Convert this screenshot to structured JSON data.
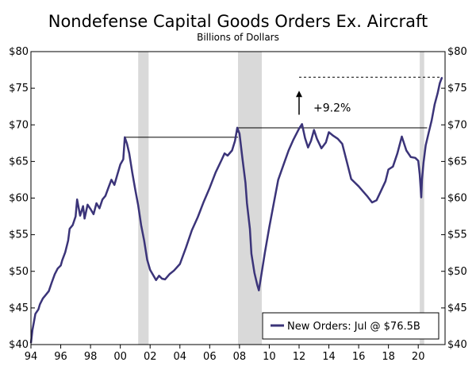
{
  "chart_data": {
    "type": "line",
    "title": "Nondefense Capital Goods Orders Ex. Aircraft",
    "subtitle": "Billions of Dollars",
    "xlabel": "",
    "ylabel": "",
    "xlim": [
      1994.0,
      2021.8
    ],
    "ylim": [
      40,
      80
    ],
    "y_ticks": [
      40,
      45,
      50,
      55,
      60,
      65,
      70,
      75,
      80
    ],
    "y_tick_labels_left": [
      "$40",
      "$45",
      "$50",
      "$55",
      "$60",
      "$65",
      "$70",
      "$75",
      "$80"
    ],
    "y_tick_labels_right": [
      "$40",
      "$45",
      "$50",
      "$55",
      "$60",
      "$65",
      "$70",
      "$75",
      "$80"
    ],
    "x_ticks": [
      1994,
      1996,
      1998,
      2000,
      2002,
      2004,
      2006,
      2008,
      2010,
      2012,
      2014,
      2016,
      2018,
      2020
    ],
    "x_tick_labels": [
      "94",
      "96",
      "98",
      "00",
      "02",
      "04",
      "06",
      "08",
      "10",
      "12",
      "14",
      "16",
      "18",
      "20"
    ],
    "grid": false,
    "legend_position": "bottom-right",
    "recessions": [
      [
        2001.2,
        2001.9
      ],
      [
        2007.9,
        2009.5
      ],
      [
        2020.1,
        2020.4
      ]
    ],
    "peak_lines": [
      {
        "x": [
          2000.3,
          2007.9
        ],
        "y": 68.3
      },
      {
        "x": [
          2007.9,
          2020.6
        ],
        "y": 69.6
      }
    ],
    "record_line": {
      "x": [
        2012.0,
        2021.6
      ],
      "y": 76.5
    },
    "annotation": {
      "text": "+9.2%",
      "x": 2012.0,
      "y_from": 70.3,
      "y_to": 73.8
    },
    "series": [
      {
        "name": "New Orders: Jul @ $76.5B",
        "color": "#3b3479",
        "x": [
          1994.0,
          1994.1,
          1994.2,
          1994.3,
          1994.5,
          1994.6,
          1994.8,
          1995.0,
          1995.2,
          1995.4,
          1995.6,
          1995.8,
          1996.0,
          1996.1,
          1996.3,
          1996.5,
          1996.6,
          1996.8,
          1997.0,
          1997.1,
          1997.3,
          1997.5,
          1997.6,
          1997.8,
          1998.0,
          1998.2,
          1998.4,
          1998.6,
          1998.8,
          1999.0,
          1999.2,
          1999.4,
          1999.6,
          1999.8,
          2000.0,
          2000.2,
          2000.3,
          2000.45,
          2000.6,
          2000.8,
          2001.0,
          2001.2,
          2001.4,
          2001.6,
          2001.8,
          2002.0,
          2002.2,
          2002.4,
          2002.6,
          2002.8,
          2003.0,
          2003.3,
          2003.6,
          2004.0,
          2004.4,
          2004.8,
          2005.2,
          2005.6,
          2006.0,
          2006.4,
          2006.8,
          2007.0,
          2007.2,
          2007.5,
          2007.7,
          2007.85,
          2008.0,
          2008.2,
          2008.4,
          2008.5,
          2008.7,
          2008.8,
          2009.0,
          2009.2,
          2009.3,
          2009.5,
          2009.7,
          2010.0,
          2010.3,
          2010.6,
          2011.0,
          2011.3,
          2011.6,
          2012.0,
          2012.2,
          2012.4,
          2012.6,
          2012.8,
          2013.0,
          2013.2,
          2013.5,
          2013.8,
          2014.0,
          2014.3,
          2014.6,
          2014.9,
          2015.2,
          2015.5,
          2015.8,
          2016.0,
          2016.3,
          2016.6,
          2016.9,
          2017.2,
          2017.5,
          2017.8,
          2018.0,
          2018.3,
          2018.6,
          2018.9,
          2019.2,
          2019.5,
          2019.8,
          2020.0,
          2020.1,
          2020.2,
          2020.25,
          2020.35,
          2020.5,
          2020.7,
          2020.9,
          2021.1,
          2021.3,
          2021.45,
          2021.6
        ],
        "values": [
          40.2,
          42.0,
          43.1,
          44.2,
          44.8,
          45.5,
          46.3,
          46.8,
          47.3,
          48.5,
          49.6,
          50.4,
          50.8,
          51.5,
          52.6,
          54.2,
          55.8,
          56.3,
          57.5,
          59.8,
          57.6,
          58.9,
          57.2,
          59.1,
          58.5,
          57.8,
          59.3,
          58.6,
          59.8,
          60.3,
          61.4,
          62.5,
          61.8,
          63.2,
          64.6,
          65.3,
          68.3,
          67.4,
          66.1,
          63.5,
          61.2,
          59.0,
          56.3,
          54.2,
          51.6,
          50.2,
          49.5,
          48.8,
          49.4,
          49.0,
          48.9,
          49.6,
          50.1,
          51.0,
          53.2,
          55.6,
          57.4,
          59.5,
          61.4,
          63.5,
          65.2,
          66.1,
          65.8,
          66.5,
          67.8,
          69.6,
          68.8,
          65.4,
          62.1,
          59.3,
          55.8,
          52.4,
          49.8,
          48.1,
          47.4,
          49.9,
          52.5,
          56.0,
          59.3,
          62.5,
          64.8,
          66.5,
          67.9,
          69.5,
          70.1,
          68.2,
          66.9,
          67.8,
          69.3,
          68.1,
          66.8,
          67.6,
          69.0,
          68.5,
          68.1,
          67.4,
          65.0,
          62.6,
          62.0,
          61.6,
          60.9,
          60.2,
          59.4,
          59.7,
          61.0,
          62.3,
          63.9,
          64.3,
          66.1,
          68.4,
          66.5,
          65.6,
          65.5,
          65.1,
          63.2,
          60.1,
          62.5,
          64.8,
          67.2,
          68.9,
          70.6,
          72.8,
          74.3,
          75.7,
          76.5
        ]
      }
    ]
  }
}
